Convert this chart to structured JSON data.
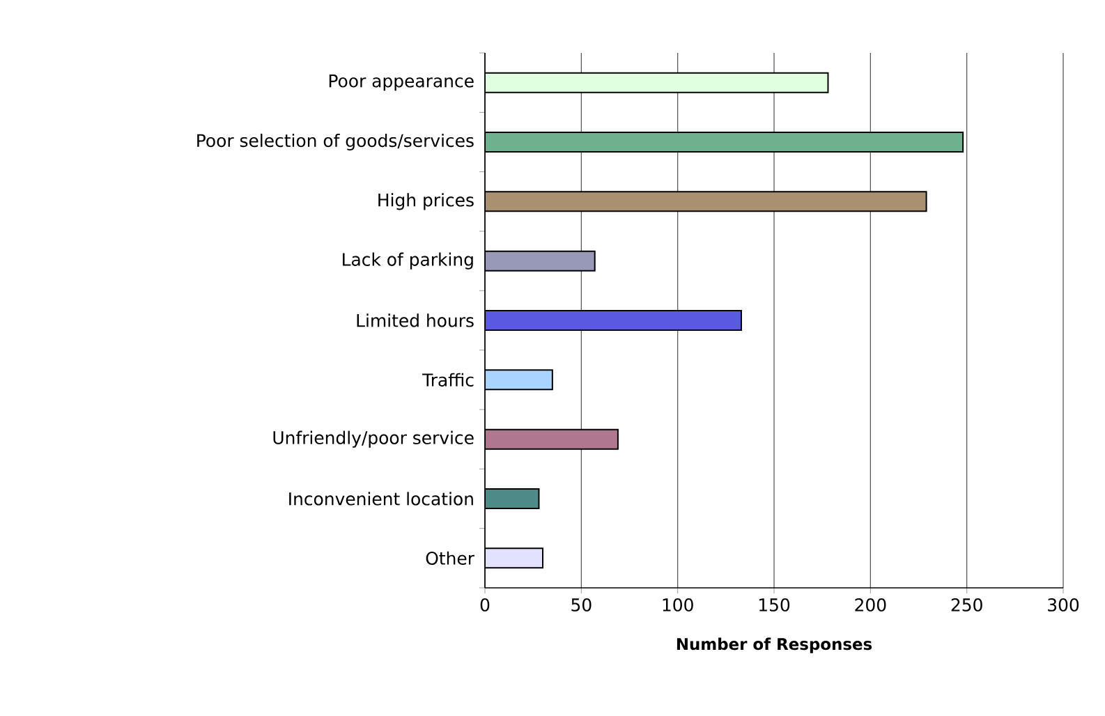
{
  "chart_data": {
    "type": "bar",
    "orientation": "horizontal",
    "xlabel": "Number of Responses",
    "categories": [
      "Poor appearance",
      "Poor selection of goods/services",
      "High prices",
      "Lack of parking",
      "Limited hours",
      "Traffic",
      "Unfriendly/poor service",
      "Inconvenient location",
      "Other"
    ],
    "values": [
      178,
      248,
      229,
      57,
      133,
      35,
      69,
      28,
      30
    ],
    "colors": [
      "#e0ffe0",
      "#6fb08e",
      "#a89070",
      "#9898b8",
      "#5a5ae0",
      "#a8d4ff",
      "#b07890",
      "#4e8a88",
      "#e2e2ff"
    ],
    "xlim": [
      0,
      300
    ],
    "xticks": [
      0,
      50,
      100,
      150,
      200,
      250,
      300
    ],
    "grid": "x"
  }
}
